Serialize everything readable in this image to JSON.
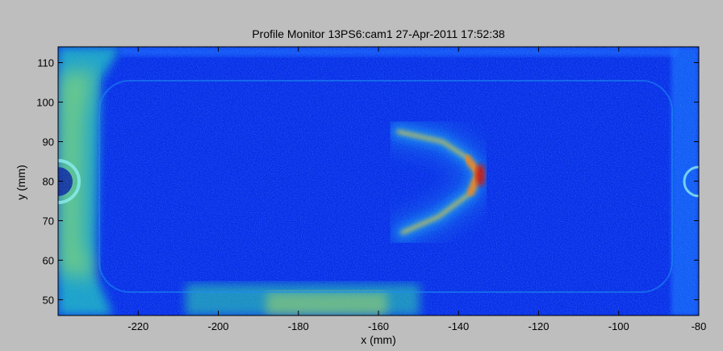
{
  "window": {
    "title": "Profile Monitor 13PS6:cam1 27-Apr-2011 17:52:38"
  },
  "chart_data": {
    "type": "heatmap",
    "title": "Profile Monitor 13PS6:cam1 27-Apr-2011 17:52:38",
    "xlabel": "x  (mm)",
    "ylabel": "y  (mm)",
    "xlim": [
      -240,
      -80
    ],
    "ylim": [
      46,
      114
    ],
    "x_ticks": [
      -220,
      -200,
      -180,
      -160,
      -140,
      -120,
      -100,
      -80
    ],
    "y_ticks": [
      50,
      60,
      70,
      80,
      90,
      100,
      110
    ],
    "colormap": "jet",
    "colors": {
      "background": "#0a2fe8",
      "beam_core": "#c81010",
      "beam_mid": "#ffd21e",
      "beam_halo": "#1ea0f0",
      "figure_bg": "#bebebe"
    },
    "features": {
      "beam_arc": {
        "points": [
          [
            -155,
            92.5
          ],
          [
            -144,
            90
          ],
          [
            -138,
            86
          ],
          [
            -135,
            82
          ],
          [
            -137,
            77
          ],
          [
            -145,
            71
          ],
          [
            -154,
            67
          ]
        ],
        "peak_intensity": [
          -134.5,
          81.5
        ]
      },
      "screen_frame": {
        "x_range": [
          -231,
          -88
        ],
        "y_range": [
          54,
          103
        ]
      },
      "holes": [
        [
          -239,
          80
        ],
        [
          -81,
          80
        ]
      ]
    },
    "grid": false,
    "legend": "none"
  }
}
